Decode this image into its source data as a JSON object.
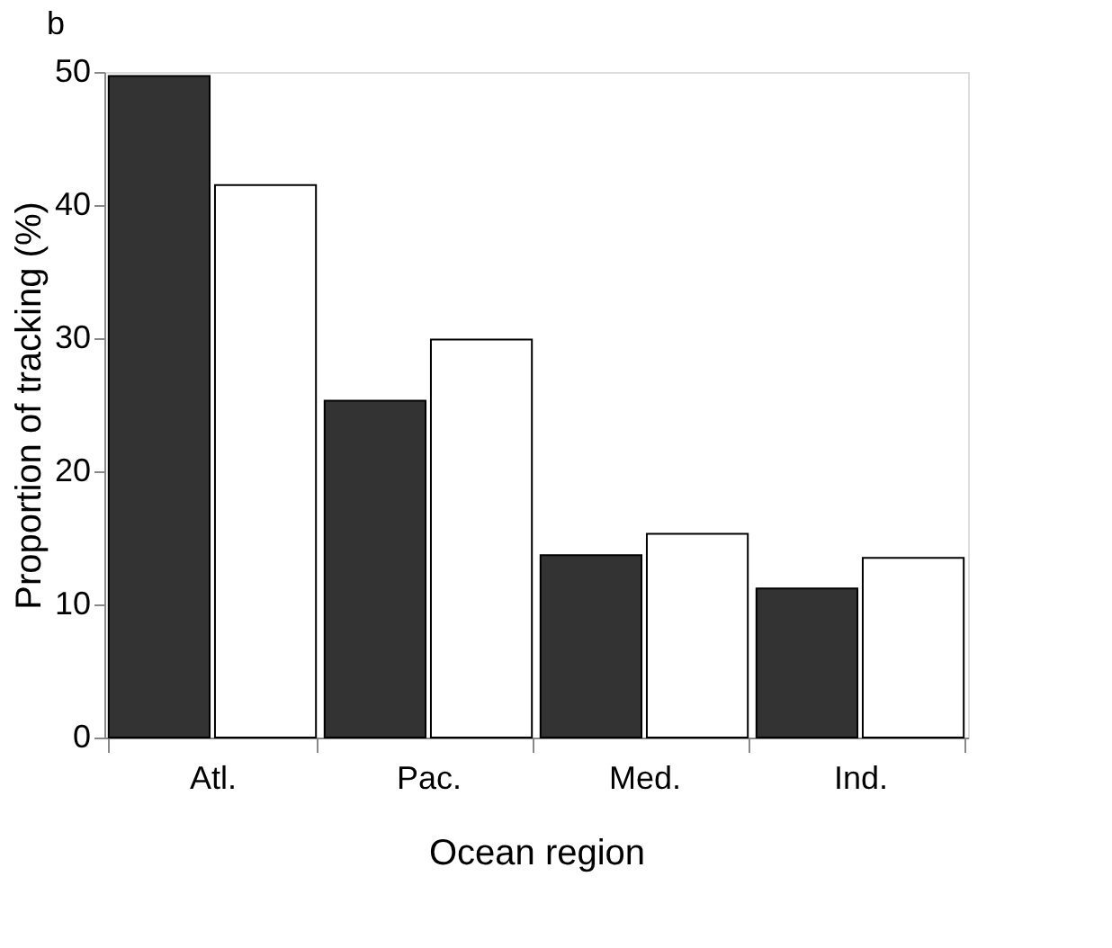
{
  "chart_data": {
    "type": "bar",
    "title": "b",
    "xlabel": "Ocean region",
    "ylabel": "Proportion of tracking (%)",
    "categories": [
      "Atl.",
      "Pac.",
      "Med.",
      "Ind."
    ],
    "series": [
      {
        "color": "#333333",
        "values": [
          49.7,
          25.3,
          13.7,
          11.2
        ]
      },
      {
        "color": "#ffffff",
        "values": [
          41.5,
          29.9,
          15.3,
          13.5
        ]
      }
    ],
    "ylim": [
      0,
      50
    ],
    "yticks": [
      0,
      10,
      20,
      30,
      40,
      50
    ],
    "grid": false,
    "legend": false
  }
}
